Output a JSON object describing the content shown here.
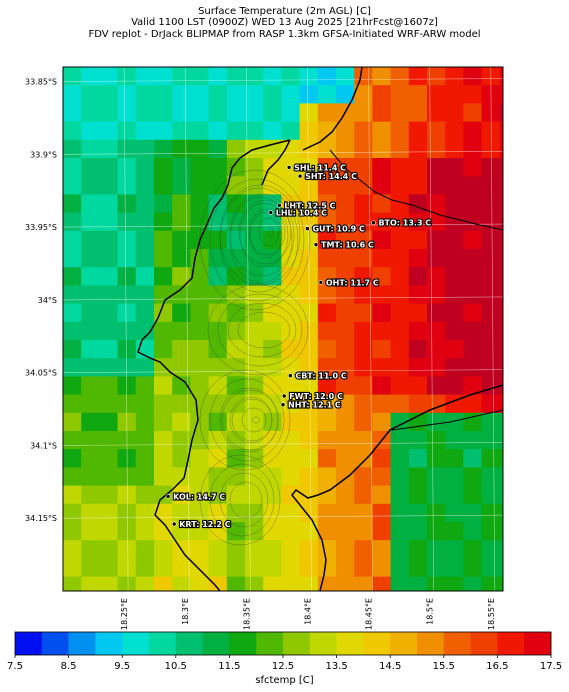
{
  "titles": {
    "line1": "Surface Temperature (2m AGL) [C]",
    "line2": "Valid 1100 LST (0900Z) WED 13 Aug 2025 [21hrFcst@1607z]",
    "line3": "FDV replot - DrJack BLIPMAP from RASP 1.3km GFSA-Initiated WRF-ARW model"
  },
  "axes": {
    "lat_ticks": [
      "33.85°S",
      "33.9°S",
      "33.95°S",
      "34°S",
      "34.05°S",
      "34.1°S",
      "34.15°S"
    ],
    "lon_ticks": [
      "18.25°E",
      "18.3°E",
      "18.35°E",
      "18.4°E",
      "18.45°E",
      "18.5°E",
      "18.55°E"
    ],
    "lat_range": [
      -34.2,
      -33.84
    ],
    "lon_range": [
      18.2,
      18.56
    ]
  },
  "colorbar": {
    "label": "sfctemp [C]",
    "min": 7.5,
    "max": 17.5,
    "step": 0.5,
    "tick_labels": [
      "7.5",
      "8.5",
      "9.5",
      "10.5",
      "11.5",
      "12.5",
      "13.5",
      "14.5",
      "15.5",
      "16.5",
      "17.5"
    ],
    "colors": [
      "#0010f0",
      "#0050f0",
      "#0090f0",
      "#00c8f0",
      "#00e0d0",
      "#00d8a0",
      "#00c070",
      "#00b040",
      "#10a810",
      "#50b800",
      "#90c800",
      "#c0d800",
      "#e0d800",
      "#f0c800",
      "#f0b000",
      "#f09000",
      "#f06000",
      "#f04000",
      "#f01800",
      "#e00010",
      "#c00020"
    ]
  },
  "stations": [
    {
      "name": "SHL: 11.4 C",
      "lon": 18.385,
      "lat": -33.909
    },
    {
      "name": "SHT: 14.4 C",
      "lon": 18.394,
      "lat": -33.915
    },
    {
      "name": "LHT: 12.5 C",
      "lon": 18.377,
      "lat": -33.935
    },
    {
      "name": "LHL: 10.4 C",
      "lon": 18.37,
      "lat": -33.94
    },
    {
      "name": "BTO: 13.3 C",
      "lon": 18.454,
      "lat": -33.947
    },
    {
      "name": "GUT: 10.9 C",
      "lon": 18.4,
      "lat": -33.951
    },
    {
      "name": "TMT: 10.6 C",
      "lon": 18.407,
      "lat": -33.962
    },
    {
      "name": "OHT: 11.7 C",
      "lon": 18.411,
      "lat": -33.988
    },
    {
      "name": "CBT: 11.0 C",
      "lon": 18.386,
      "lat": -34.052
    },
    {
      "name": "FWT: 12.0 C",
      "lon": 18.381,
      "lat": -34.066
    },
    {
      "name": "NHT: 12.1 C",
      "lon": 18.38,
      "lat": -34.072
    },
    {
      "name": "KOL: 14.7 C",
      "lon": 18.286,
      "lat": -34.135
    },
    {
      "name": "KRT: 12.2 C",
      "lon": 18.291,
      "lat": -34.154
    }
  ]
}
